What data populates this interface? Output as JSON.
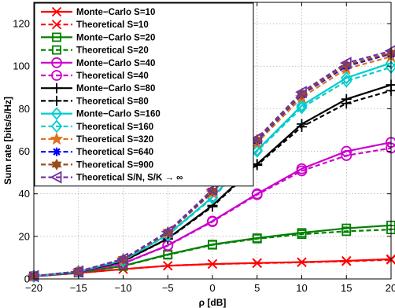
{
  "chart_data": {
    "type": "line",
    "xlabel": "ρ [dB]",
    "ylabel": "Sum rate [bits/s/Hz]",
    "x": [
      -20,
      -15,
      -10,
      -5,
      0,
      5,
      10,
      15,
      20
    ],
    "xlim": [
      -20,
      20
    ],
    "ylim": [
      0,
      130
    ],
    "xticks": [
      "−20",
      "−15",
      "−10",
      "−5",
      "0",
      "5",
      "10",
      "15",
      "20"
    ],
    "yticks": [
      "0",
      "20",
      "40",
      "60",
      "80",
      "100",
      "120"
    ],
    "grid": true,
    "legend_position": "top-left",
    "series": [
      {
        "name": "Monte−Carlo S=10",
        "color": "#ff0000",
        "dash": "solid",
        "marker": "x",
        "values": [
          1.2,
          2.8,
          4.6,
          6.2,
          7.0,
          7.5,
          7.9,
          8.5,
          9.3
        ]
      },
      {
        "name": "Theoretical S=10",
        "color": "#ff0000",
        "dash": "dashed",
        "marker": "x",
        "values": [
          1.2,
          2.8,
          4.6,
          6.2,
          7.0,
          7.4,
          7.8,
          8.3,
          9.0
        ]
      },
      {
        "name": "Monte−Carlo S=20",
        "color": "#008000",
        "dash": "solid",
        "marker": "square",
        "values": [
          1.3,
          3.0,
          6.1,
          11.5,
          16.2,
          19.2,
          21.7,
          23.8,
          25.2
        ]
      },
      {
        "name": "Theoretical S=20",
        "color": "#008000",
        "dash": "dashed",
        "marker": "square",
        "values": [
          1.3,
          3.0,
          6.0,
          11.3,
          16.0,
          18.9,
          21.0,
          22.4,
          23.2
        ]
      },
      {
        "name": "Monte−Carlo S=40",
        "color": "#cc00cc",
        "dash": "solid",
        "marker": "circle",
        "values": [
          1.3,
          3.2,
          7.3,
          15.8,
          27.2,
          40.0,
          51.8,
          60.0,
          64.2
        ]
      },
      {
        "name": "Theoretical S=40",
        "color": "#cc00cc",
        "dash": "dashed",
        "marker": "circle",
        "values": [
          1.3,
          3.2,
          7.2,
          15.6,
          26.9,
          39.6,
          50.8,
          58.0,
          61.5
        ]
      },
      {
        "name": "Monte−Carlo S=80",
        "color": "#000000",
        "dash": "solid",
        "marker": "plus",
        "values": [
          1.3,
          3.3,
          8.3,
          19.0,
          34.5,
          54.0,
          72.8,
          84.5,
          91.2
        ]
      },
      {
        "name": "Theoretical S=80",
        "color": "#000000",
        "dash": "dashed",
        "marker": "plus",
        "values": [
          1.3,
          3.3,
          8.2,
          18.8,
          34.0,
          53.5,
          71.5,
          82.5,
          88.5
        ]
      },
      {
        "name": "Monte−Carlo S=160",
        "color": "#00cccc",
        "dash": "solid",
        "marker": "diamond",
        "values": [
          1.3,
          3.4,
          8.8,
          20.8,
          38.5,
          60.5,
          81.5,
          94.5,
          101.5
        ]
      },
      {
        "name": "Theoretical S=160",
        "color": "#00cccc",
        "dash": "dashed",
        "marker": "diamond",
        "values": [
          1.3,
          3.4,
          8.7,
          20.6,
          38.0,
          60.0,
          80.5,
          93.0,
          99.5
        ]
      },
      {
        "name": "Theoretical S=320",
        "color": "#e07020",
        "dash": "dashed",
        "marker": "star",
        "values": [
          1.3,
          3.5,
          9.1,
          21.6,
          40.5,
          64.0,
          85.3,
          98.8,
          104.5
        ]
      },
      {
        "name": "Theoretical S=640",
        "color": "#0000ff",
        "dash": "dashed",
        "marker": "asterisk",
        "values": [
          1.3,
          3.5,
          9.2,
          21.9,
          41.2,
          65.0,
          86.6,
          100.0,
          105.8
        ]
      },
      {
        "name": "Theoretical S=900",
        "color": "#994d1a",
        "dash": "dashed",
        "marker": "hexagram",
        "values": [
          1.3,
          3.5,
          9.3,
          22.0,
          41.5,
          65.4,
          87.0,
          100.6,
          106.3
        ]
      },
      {
        "name": "Theoretical S/N, S/K → ∞",
        "color": "#7030a0",
        "dash": "dashed",
        "marker": "triangle-left",
        "values": [
          1.3,
          3.5,
          9.4,
          22.2,
          42.0,
          66.0,
          87.8,
          101.5,
          107.2
        ]
      }
    ]
  }
}
